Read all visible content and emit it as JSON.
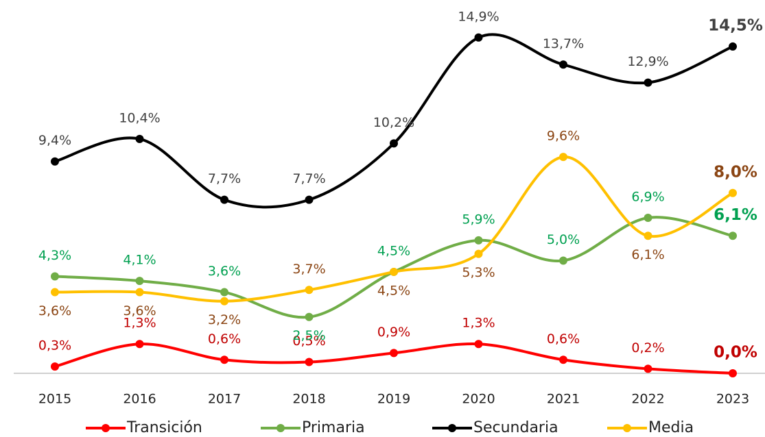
{
  "chart_data": {
    "type": "line",
    "categories": [
      "2015",
      "2016",
      "2017",
      "2018",
      "2019",
      "2020",
      "2021",
      "2022",
      "2023"
    ],
    "ylim": [
      0,
      16.2
    ],
    "series": [
      {
        "name": "Transición",
        "color": "#ff0000",
        "label_color": "#c00000",
        "values": [
          0.3,
          1.3,
          0.6,
          0.5,
          0.9,
          1.3,
          0.6,
          0.2,
          0.0
        ],
        "value_labels": [
          "0,3%",
          "1,3%",
          "0,6%",
          "0,5%",
          "0,9%",
          "1,3%",
          "0,6%",
          "0,2%",
          "0,0%"
        ]
      },
      {
        "name": "Primaria",
        "color": "#70ad47",
        "label_color": "#00a050",
        "values": [
          4.3,
          4.1,
          3.6,
          2.5,
          4.5,
          5.9,
          5.0,
          6.9,
          6.1
        ],
        "value_labels": [
          "4,3%",
          "4,1%",
          "3,6%",
          "2,5%",
          "4,5%",
          "5,9%",
          "5,0%",
          "6,9%",
          "6,1%"
        ]
      },
      {
        "name": "Secundaria",
        "color": "#000000",
        "label_color": "#404040",
        "values": [
          9.4,
          10.4,
          7.7,
          7.7,
          10.2,
          14.9,
          13.7,
          12.9,
          14.5
        ],
        "value_labels": [
          "9,4%",
          "10,4%",
          "7,7%",
          "7,7%",
          "10,2%",
          "14,9%",
          "13,7%",
          "12,9%",
          "14,5%"
        ]
      },
      {
        "name": "Media",
        "color": "#ffc000",
        "label_color": "#8b4513",
        "values": [
          3.6,
          3.6,
          3.2,
          3.7,
          4.5,
          5.3,
          9.6,
          6.1,
          8.0
        ],
        "value_labels": [
          "3,6%",
          "3,6%",
          "3,2%",
          "3,7%",
          "4,5%",
          "5,3%",
          "9,6%",
          "6,1%",
          "8,0%"
        ]
      }
    ]
  }
}
